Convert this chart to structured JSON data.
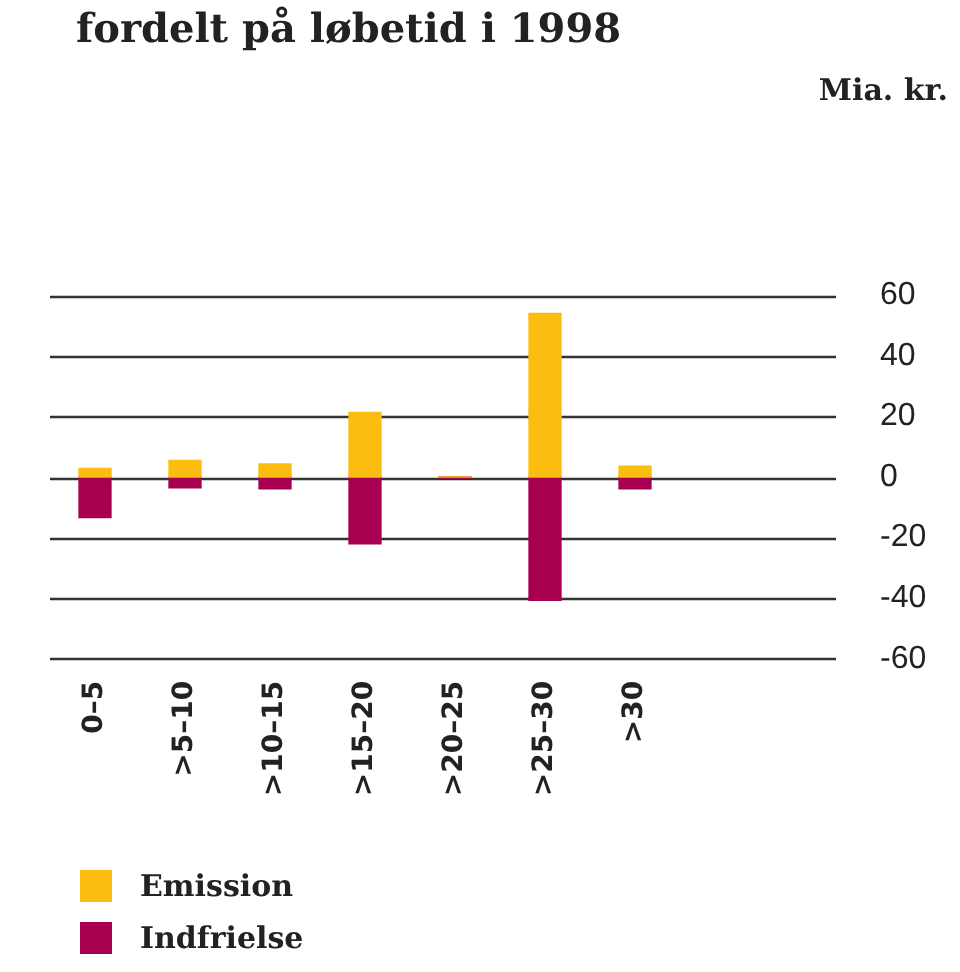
{
  "chart_data": {
    "type": "bar",
    "title": "fordelt på løbetid i 1998",
    "annotations": [
      "Mia. kr."
    ],
    "categories": [
      "0–5",
      ">5–10",
      ">10–15",
      ">15–20",
      ">20–25",
      ">25–30",
      ">30"
    ],
    "series": [
      {
        "name": "Emission",
        "color": "#fbbe10",
        "values": [
          2.8,
          5.5,
          4.3,
          21.3,
          0,
          54,
          3.6
        ]
      },
      {
        "name": "Indfrielse",
        "color": "#a80050",
        "values": [
          -13.4,
          -3.6,
          -3.9,
          -22.1,
          -0.4,
          -40.7,
          -3.9
        ]
      }
    ],
    "stacked": true,
    "ylim": [
      -60,
      60
    ],
    "yticks": [
      -60,
      -40,
      -20,
      0,
      20,
      40,
      60
    ],
    "grid": "y",
    "legend": "bottom"
  }
}
